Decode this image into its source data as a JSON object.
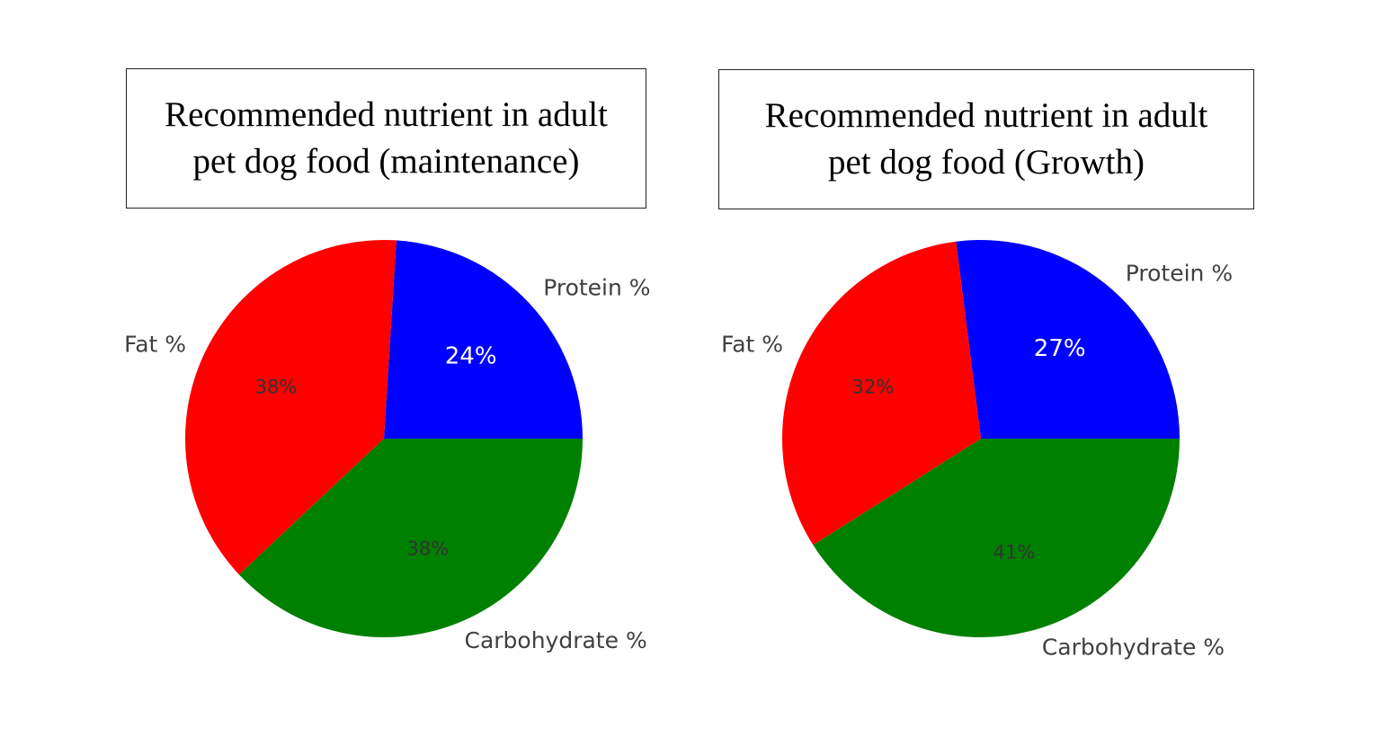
{
  "chart_data": [
    {
      "type": "pie",
      "title": "Recommended nutrient in adult\npet dog food (maintenance)",
      "labels": [
        "Protein %",
        "Fat %",
        "Carbohydrate %"
      ],
      "values": [
        24,
        38,
        38
      ],
      "value_labels": [
        "24%",
        "38%",
        "38%"
      ],
      "colors": [
        "#0000ff",
        "#ff0000",
        "#008000"
      ]
    },
    {
      "type": "pie",
      "title": "Recommended nutrient in adult\npet dog food (Growth)",
      "labels": [
        "Protein %",
        "Fat %",
        "Carbohydrate %"
      ],
      "values": [
        27,
        32,
        41
      ],
      "value_labels": [
        "27%",
        "32%",
        "41%"
      ],
      "colors": [
        "#0000ff",
        "#ff0000",
        "#008000"
      ]
    }
  ]
}
